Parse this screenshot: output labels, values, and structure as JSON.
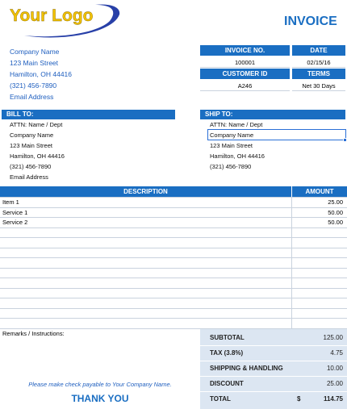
{
  "header": {
    "logo": "Your Logo",
    "title": "INVOICE"
  },
  "company": [
    "Company Name",
    "123 Main Street",
    "Hamilton, OH  44416",
    "(321) 456-7890",
    "Email Address"
  ],
  "invoice_info": {
    "headers1": [
      "INVOICE NO.",
      "DATE"
    ],
    "values1": [
      "100001",
      "02/15/16"
    ],
    "headers2": [
      "CUSTOMER ID",
      "TERMS"
    ],
    "values2": [
      "A246",
      "Net 30 Days"
    ]
  },
  "bill_to": {
    "title": "BILL TO:",
    "lines": [
      "ATTN: Name / Dept",
      "Company Name",
      "123 Main Street",
      "Hamilton, OH  44416",
      "(321) 456-7890",
      "Email Address"
    ]
  },
  "ship_to": {
    "title": "SHIP TO:",
    "lines": [
      "ATTN: Name / Dept",
      "Company Name",
      "123 Main Street",
      "Hamilton, OH  44416",
      "(321) 456-7890"
    ]
  },
  "items": {
    "headers": [
      "DESCRIPTION",
      "AMOUNT"
    ],
    "rows": [
      [
        "Item 1",
        "25.00"
      ],
      [
        "Service 1",
        "50.00"
      ],
      [
        "Service 2",
        "50.00"
      ]
    ]
  },
  "remarks_label": "Remarks / Instructions:",
  "totals": {
    "rows": [
      [
        "SUBTOTAL",
        "125.00"
      ],
      [
        "TAX (3.8%)",
        "4.75"
      ],
      [
        "SHIPPING & HANDLING",
        "10.00"
      ],
      [
        "DISCOUNT",
        "25.00"
      ]
    ],
    "total": {
      "label": "TOTAL",
      "currency": "$",
      "value": "114.75"
    }
  },
  "footer": {
    "note": "Please make check payable to Your Company Name.",
    "thanks": "THANK YOU"
  }
}
